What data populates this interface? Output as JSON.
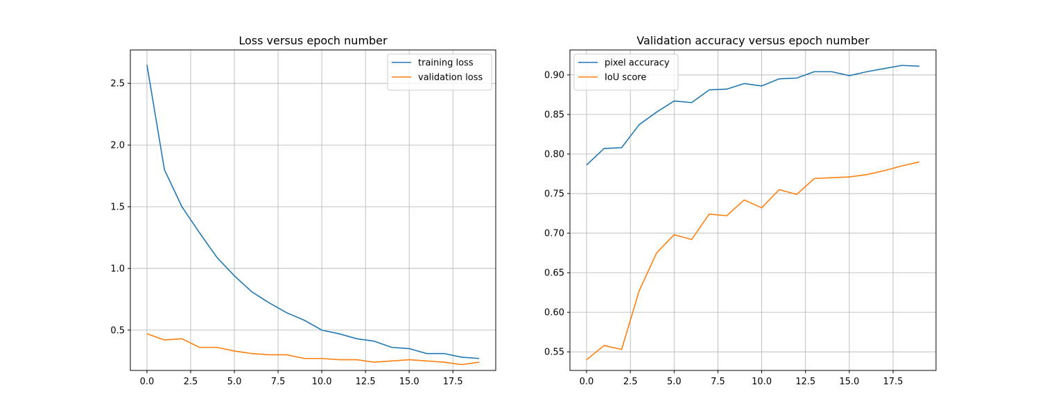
{
  "chart_data": [
    {
      "type": "line",
      "title": "Loss versus epoch number",
      "xlabel": "",
      "ylabel": "",
      "xlim": [
        -0.95,
        19.95
      ],
      "ylim": [
        0.173,
        2.771
      ],
      "xticks": [
        0.0,
        2.5,
        5.0,
        7.5,
        10.0,
        12.5,
        15.0,
        17.5
      ],
      "xtick_labels": [
        "0.0",
        "2.5",
        "5.0",
        "7.5",
        "10.0",
        "12.5",
        "15.0",
        "17.5"
      ],
      "yticks": [
        0.5,
        1.0,
        1.5,
        2.0,
        2.5
      ],
      "ytick_labels": [
        "0.5",
        "1.0",
        "1.5",
        "2.0",
        "2.5"
      ],
      "grid": true,
      "legend_position": "upper right",
      "x": [
        0,
        1,
        2,
        3,
        4,
        5,
        6,
        7,
        8,
        9,
        10,
        11,
        12,
        13,
        14,
        15,
        16,
        17,
        18,
        19
      ],
      "series": [
        {
          "name": "training loss",
          "color": "#1f77b4",
          "values": [
            2.65,
            1.8,
            1.5,
            1.29,
            1.09,
            0.94,
            0.81,
            0.72,
            0.64,
            0.58,
            0.5,
            0.47,
            0.43,
            0.41,
            0.36,
            0.35,
            0.31,
            0.31,
            0.28,
            0.27
          ]
        },
        {
          "name": "validation loss",
          "color": "#ff7f0e",
          "values": [
            0.47,
            0.42,
            0.43,
            0.36,
            0.36,
            0.33,
            0.31,
            0.3,
            0.3,
            0.27,
            0.27,
            0.26,
            0.26,
            0.24,
            0.25,
            0.26,
            0.25,
            0.24,
            0.22,
            0.24
          ]
        }
      ]
    },
    {
      "type": "line",
      "title": "Validation accuracy versus epoch number",
      "xlabel": "",
      "ylabel": "",
      "xlim": [
        -0.95,
        19.95
      ],
      "ylim": [
        0.5265,
        0.9315
      ],
      "xticks": [
        0.0,
        2.5,
        5.0,
        7.5,
        10.0,
        12.5,
        15.0,
        17.5
      ],
      "xtick_labels": [
        "0.0",
        "2.5",
        "5.0",
        "7.5",
        "10.0",
        "12.5",
        "15.0",
        "17.5"
      ],
      "yticks": [
        0.55,
        0.6,
        0.65,
        0.7,
        0.75,
        0.8,
        0.85,
        0.9
      ],
      "ytick_labels": [
        "0.55",
        "0.60",
        "0.65",
        "0.70",
        "0.75",
        "0.80",
        "0.85",
        "0.90"
      ],
      "grid": true,
      "legend_position": "upper left",
      "x": [
        0,
        1,
        2,
        3,
        4,
        5,
        6,
        7,
        8,
        9,
        10,
        11,
        12,
        13,
        14,
        15,
        16,
        17,
        18,
        19
      ],
      "series": [
        {
          "name": "pixel accuracy",
          "color": "#1f77b4",
          "values": [
            0.786,
            0.807,
            0.808,
            0.837,
            0.853,
            0.867,
            0.865,
            0.881,
            0.882,
            0.889,
            0.886,
            0.895,
            0.896,
            0.904,
            0.904,
            0.899,
            0.904,
            0.908,
            0.912,
            0.911
          ]
        },
        {
          "name": "IoU score",
          "color": "#ff7f0e",
          "values": [
            0.54,
            0.558,
            0.553,
            0.627,
            0.675,
            0.698,
            0.692,
            0.724,
            0.722,
            0.742,
            0.732,
            0.755,
            0.749,
            0.769,
            0.77,
            0.771,
            0.774,
            0.779,
            0.785,
            0.79
          ]
        }
      ]
    }
  ]
}
